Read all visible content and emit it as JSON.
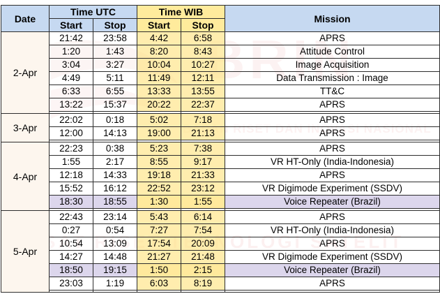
{
  "header": {
    "date": "Date",
    "utc": "Time UTC",
    "wib": "Time WIB",
    "mission": "Mission",
    "start": "Start",
    "stop": "Stop"
  },
  "watermark": {
    "logo_text": "BRIN",
    "line1": "BADAN RISET DAN INOVASI NASIONAL",
    "line2": "PUSAT RISET TEKNOLOGI SATELIT"
  },
  "colors": {
    "header_blue": "#c6d9f1",
    "header_yellow": "#ffeb9c",
    "wib_column": "#ffe99c",
    "voice_repeater_row": "#dcd6ec",
    "watermark_red": "#d9534f"
  },
  "groups": [
    {
      "date": "2-Apr",
      "rows": [
        {
          "utc_start": "21:42",
          "utc_stop": "23:58",
          "wib_start": "4:42",
          "wib_stop": "6:58",
          "mission": "APRS"
        },
        {
          "utc_start": "1:20",
          "utc_stop": "1:43",
          "wib_start": "8:20",
          "wib_stop": "8:43",
          "mission": "Attitude Control"
        },
        {
          "utc_start": "3:04",
          "utc_stop": "3:27",
          "wib_start": "10:04",
          "wib_stop": "10:27",
          "mission": "Image Acquisition"
        },
        {
          "utc_start": "4:49",
          "utc_stop": "5:11",
          "wib_start": "11:49",
          "wib_stop": "12:11",
          "mission": "Data Transmission : Image"
        },
        {
          "utc_start": "6:33",
          "utc_stop": "6:55",
          "wib_start": "13:33",
          "wib_stop": "13:55",
          "mission": "TT&C"
        },
        {
          "utc_start": "13:22",
          "utc_stop": "15:37",
          "wib_start": "20:22",
          "wib_stop": "22:37",
          "mission": "APRS"
        }
      ]
    },
    {
      "date": "3-Apr",
      "rows": [
        {
          "utc_start": "22:02",
          "utc_stop": "0:18",
          "wib_start": "5:02",
          "wib_stop": "7:18",
          "mission": "APRS"
        },
        {
          "utc_start": "12:00",
          "utc_stop": "14:13",
          "wib_start": "19:00",
          "wib_stop": "21:13",
          "mission": "APRS"
        }
      ]
    },
    {
      "date": "4-Apr",
      "rows": [
        {
          "utc_start": "22:23",
          "utc_stop": "0:38",
          "wib_start": "5:23",
          "wib_stop": "7:38",
          "mission": "APRS"
        },
        {
          "utc_start": "1:55",
          "utc_stop": "2:17",
          "wib_start": "8:55",
          "wib_stop": "9:17",
          "mission": "VR HT-Only (India-Indonesia)"
        },
        {
          "utc_start": "12:18",
          "utc_stop": "14:33",
          "wib_start": "19:18",
          "wib_stop": "21:33",
          "mission": "APRS"
        },
        {
          "utc_start": "15:52",
          "utc_stop": "16:12",
          "wib_start": "22:52",
          "wib_stop": "23:12",
          "mission": "VR Digimode Experiment (SSDV)"
        },
        {
          "utc_start": "18:30",
          "utc_stop": "18:55",
          "wib_start": "1:30",
          "wib_stop": "1:55",
          "mission": "Voice Repeater (Brazil)",
          "highlight": true
        }
      ]
    },
    {
      "date": "5-Apr",
      "rows": [
        {
          "utc_start": "22:43",
          "utc_stop": "23:14",
          "wib_start": "5:43",
          "wib_stop": "6:14",
          "mission": "APRS"
        },
        {
          "utc_start": "0:27",
          "utc_stop": "0:54",
          "wib_start": "7:27",
          "wib_stop": "7:54",
          "mission": "VR HT-Only (India-Indonesia)"
        },
        {
          "utc_start": "10:54",
          "utc_stop": "13:09",
          "wib_start": "17:54",
          "wib_stop": "20:09",
          "mission": "APRS"
        },
        {
          "utc_start": "14:27",
          "utc_stop": "14:48",
          "wib_start": "21:27",
          "wib_stop": "21:48",
          "mission": "VR Digimode Experiment (SSDV)"
        },
        {
          "utc_start": "18:50",
          "utc_stop": "19:15",
          "wib_start": "1:50",
          "wib_stop": "2:15",
          "mission": "Voice Repeater (Brazil)",
          "highlight": true
        },
        {
          "utc_start": "23:03",
          "utc_stop": "1:19",
          "wib_start": "6:03",
          "wib_stop": "8:19",
          "mission": "APRS"
        }
      ]
    }
  ]
}
